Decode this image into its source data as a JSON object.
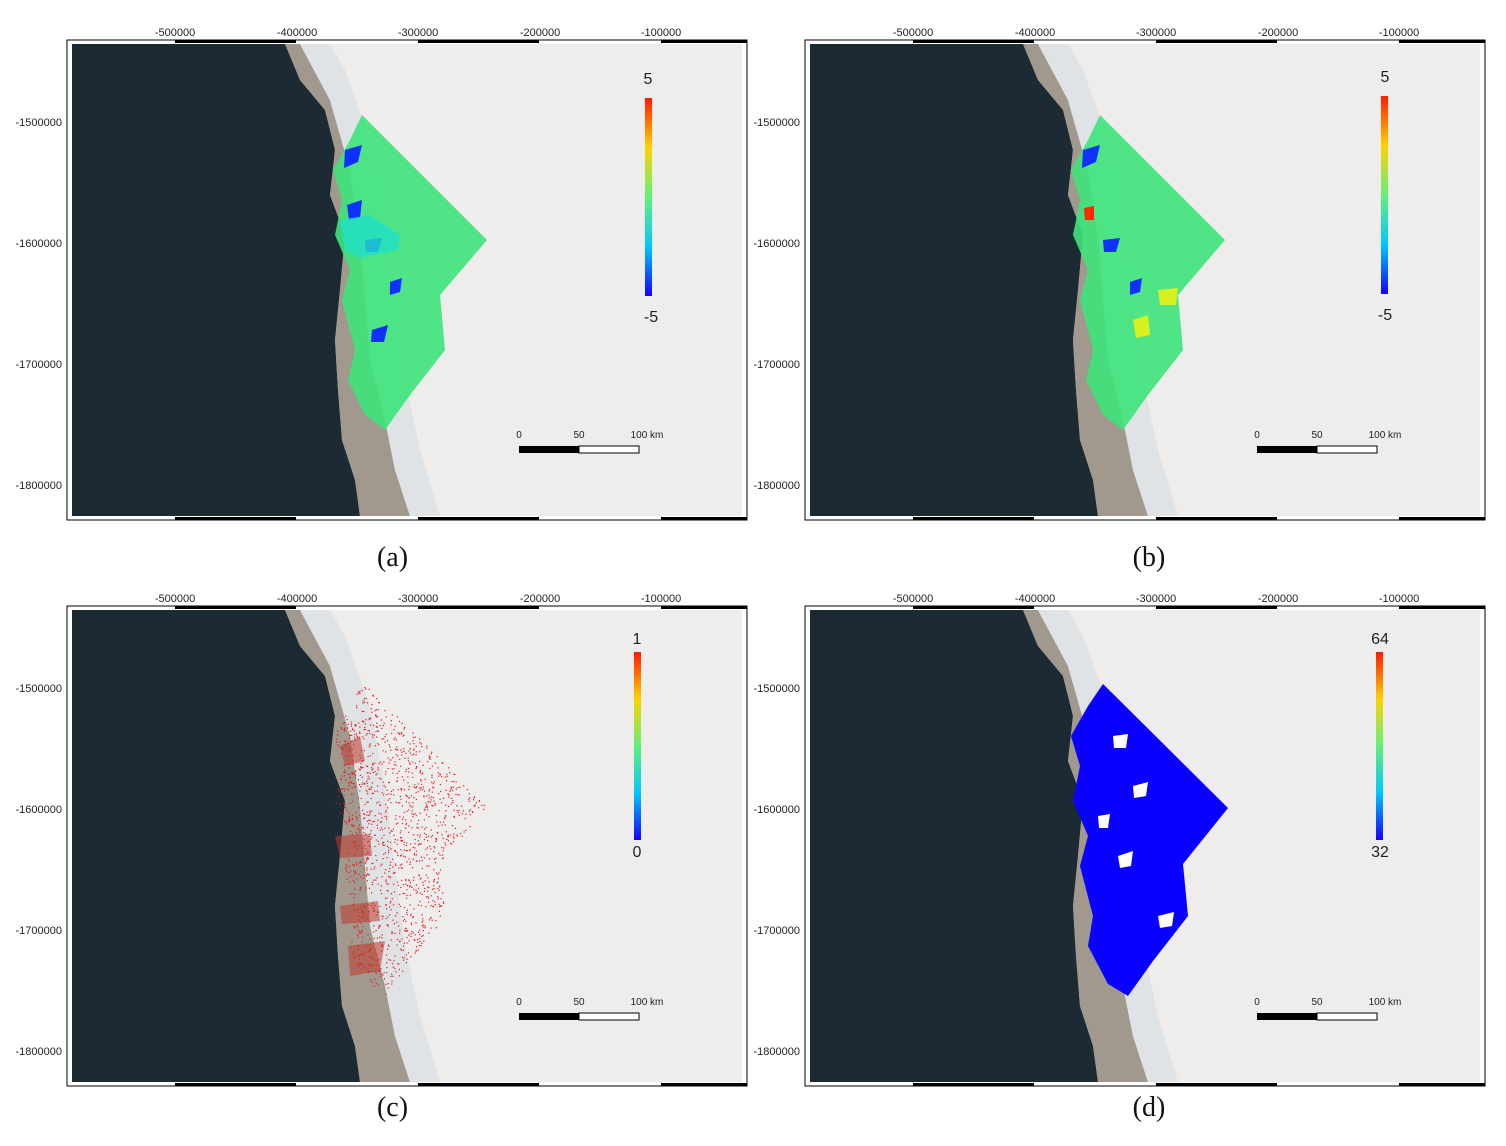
{
  "axes": {
    "x_ticks": [
      "-500000",
      "-400000",
      "-300000",
      "-200000",
      "-100000"
    ],
    "y_ticks": [
      "-1500000",
      "-1600000",
      "-1700000",
      "-1800000"
    ]
  },
  "scalebar": {
    "labels": [
      "0",
      "50",
      "100 km"
    ]
  },
  "panels": [
    {
      "caption": "(a)",
      "overlay": "rainbow-field",
      "colorbar": {
        "max": "5",
        "min": "-5"
      }
    },
    {
      "caption": "(b)",
      "overlay": "rainbow-field",
      "colorbar": {
        "max": "5",
        "min": "-5"
      }
    },
    {
      "caption": "(c)",
      "overlay": "red-points",
      "colorbar": {
        "max": "1",
        "min": "0"
      }
    },
    {
      "caption": "(d)",
      "overlay": "blue-field",
      "colorbar": {
        "max": "64",
        "min": "32"
      }
    }
  ],
  "colors": {
    "ocean": "#1b2a33",
    "ice": "#efecec",
    "land": "#6b5a46",
    "field_green": "#3de37a",
    "field_blue": "#0a00ff",
    "points_red": "#e31a1c"
  }
}
